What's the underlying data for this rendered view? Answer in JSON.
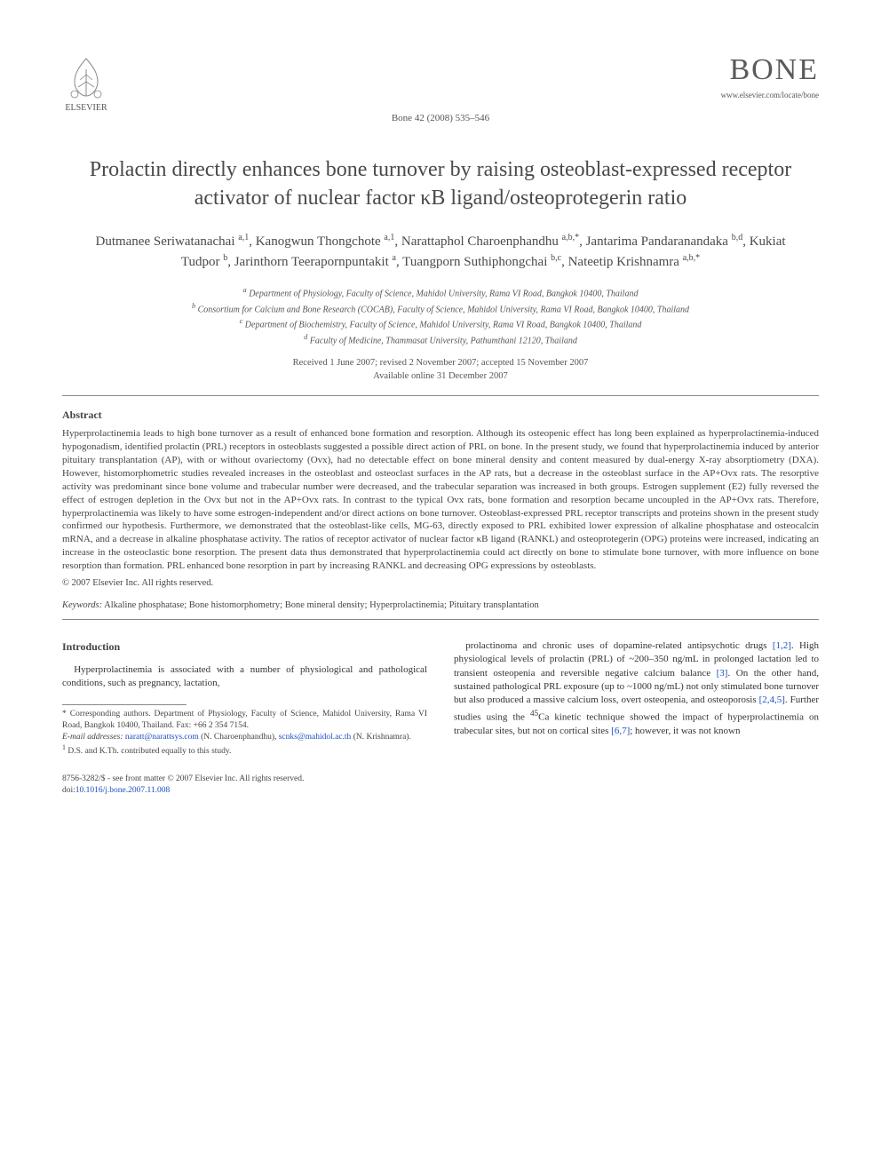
{
  "header": {
    "publisher": "ELSEVIER",
    "citation": "Bone 42 (2008) 535–546",
    "journal": "BONE",
    "journal_url": "www.elsevier.com/locate/bone"
  },
  "title": "Prolactin directly enhances bone turnover by raising osteoblast-expressed receptor activator of nuclear factor κB ligand/osteoprotegerin ratio",
  "authors_html": "Dutmanee Seriwatanachai <sup>a,1</sup>, Kanogwun Thongchote <sup>a,1</sup>, Narattaphol Charoenphandhu <sup>a,b,*</sup>, Jantarima Pandaranandaka <sup>b,d</sup>, Kukiat Tudpor <sup>b</sup>, Jarinthorn Teerapornpuntakit <sup>a</sup>, Tuangporn Suthiphongchai <sup>b,c</sup>, Nateetip Krishnamra <sup>a,b,*</sup>",
  "affiliations": [
    "a Department of Physiology, Faculty of Science, Mahidol University, Rama VI Road, Bangkok 10400, Thailand",
    "b Consortium for Calcium and Bone Research (COCAB), Faculty of Science, Mahidol University, Rama VI Road, Bangkok 10400, Thailand",
    "c Department of Biochemistry, Faculty of Science, Mahidol University, Rama VI Road, Bangkok 10400, Thailand",
    "d Faculty of Medicine, Thammasat University, Pathumthani 12120, Thailand"
  ],
  "dates": {
    "received": "Received 1 June 2007; revised 2 November 2007; accepted 15 November 2007",
    "online": "Available online 31 December 2007"
  },
  "abstract": {
    "heading": "Abstract",
    "text": "Hyperprolactinemia leads to high bone turnover as a result of enhanced bone formation and resorption. Although its osteopenic effect has long been explained as hyperprolactinemia-induced hypogonadism, identified prolactin (PRL) receptors in osteoblasts suggested a possible direct action of PRL on bone. In the present study, we found that hyperprolactinemia induced by anterior pituitary transplantation (AP), with or without ovariectomy (Ovx), had no detectable effect on bone mineral density and content measured by dual-energy X-ray absorptiometry (DXA). However, histomorphometric studies revealed increases in the osteoblast and osteoclast surfaces in the AP rats, but a decrease in the osteoblast surface in the AP+Ovx rats. The resorptive activity was predominant since bone volume and trabecular number were decreased, and the trabecular separation was increased in both groups. Estrogen supplement (E2) fully reversed the effect of estrogen depletion in the Ovx but not in the AP+Ovx rats. In contrast to the typical Ovx rats, bone formation and resorption became uncoupled in the AP+Ovx rats. Therefore, hyperprolactinemia was likely to have some estrogen-independent and/or direct actions on bone turnover. Osteoblast-expressed PRL receptor transcripts and proteins shown in the present study confirmed our hypothesis. Furthermore, we demonstrated that the osteoblast-like cells, MG-63, directly exposed to PRL exhibited lower expression of alkaline phosphatase and osteocalcin mRNA, and a decrease in alkaline phosphatase activity. The ratios of receptor activator of nuclear factor κB ligand (RANKL) and osteoprotegerin (OPG) proteins were increased, indicating an increase in the osteoclastic bone resorption. The present data thus demonstrated that hyperprolactinemia could act directly on bone to stimulate bone turnover, with more influence on bone resorption than formation. PRL enhanced bone resorption in part by increasing RANKL and decreasing OPG expressions by osteoblasts.",
    "copyright": "© 2007 Elsevier Inc. All rights reserved."
  },
  "keywords": {
    "label": "Keywords:",
    "text": "Alkaline phosphatase; Bone histomorphometry; Bone mineral density; Hyperprolactinemia; Pituitary transplantation"
  },
  "intro": {
    "heading": "Introduction",
    "left": "Hyperprolactinemia is associated with a number of physiological and pathological conditions, such as pregnancy, lactation,",
    "right_html": "prolactinoma and chronic uses of dopamine-related antipsychotic drugs <span class=\"ref-link\">[1,2]</span>. High physiological levels of prolactin (PRL) of ~200–350 ng/mL in prolonged lactation led to transient osteopenia and reversible negative calcium balance <span class=\"ref-link\">[3]</span>. On the other hand, sustained pathological PRL exposure (up to ~1000 ng/mL) not only stimulated bone turnover but also produced a massive calcium loss, overt osteopenia, and osteoporosis <span class=\"ref-link\">[2,4,5]</span>. Further studies using the <sup>45</sup>Ca kinetic technique showed the impact of hyperprolactinemia on trabecular sites, but not on cortical sites <span class=\"ref-link\">[6,7]</span>; however, it was not known"
  },
  "footnotes": {
    "corr": "* Corresponding authors. Department of Physiology, Faculty of Science, Mahidol University, Rama VI Road, Bangkok 10400, Thailand. Fax: +66 2 354 7154.",
    "email_label": "E-mail addresses:",
    "email1": "naratt@narattsys.com",
    "email1_who": "(N. Charoenphandhu),",
    "email2": "scnks@mahidol.ac.th",
    "email2_who": "(N. Krishnamra).",
    "note1": "1 D.S. and K.Th. contributed equally to this study."
  },
  "bottom": {
    "issn": "8756-3282/$ - see front matter © 2007 Elsevier Inc. All rights reserved.",
    "doi_label": "doi:",
    "doi": "10.1016/j.bone.2007.11.008"
  },
  "style": {
    "link_color": "#1a4fbf",
    "text_color": "#333333",
    "rule_color": "#888888"
  }
}
